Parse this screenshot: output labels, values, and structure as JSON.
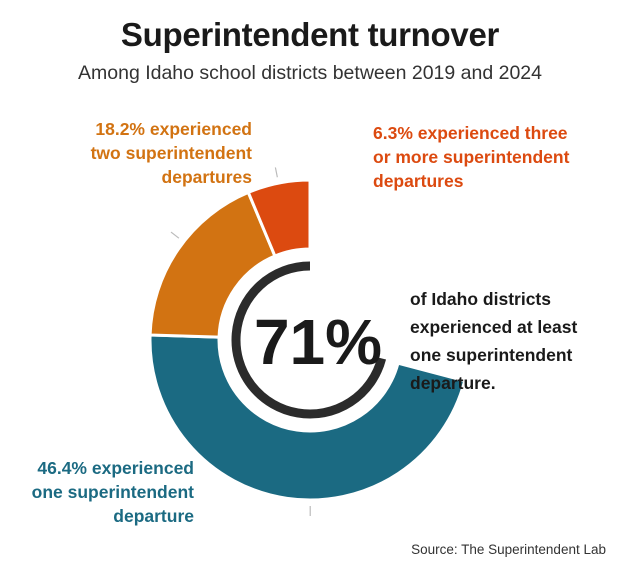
{
  "title": "Superintendent turnover",
  "subtitle": "Among Idaho school districts between 2019 and 2024",
  "source": "Source: The Superintendent Lab",
  "colors": {
    "one": "#1b6a82",
    "two": "#d27312",
    "three": "#dc4a10",
    "center_ring": "#2b2b2b"
  },
  "chart_data": {
    "type": "pie",
    "title": "Superintendent turnover",
    "subtitle": "Among Idaho school districts between 2019 and 2024",
    "categories": [
      "one superintendent departure",
      "two superintendent departures",
      "three or more superintendent departures"
    ],
    "values": [
      46.4,
      18.2,
      6.3
    ],
    "unit": "%",
    "total_label": "71%",
    "total_value": 71,
    "labels": {
      "one": [
        "46.4% experienced",
        "one superintendent",
        "departure"
      ],
      "two": [
        "18.2% experienced",
        "two superintendent",
        "departures"
      ],
      "three": [
        "6.3% experienced three",
        "or more superintendent",
        "departures"
      ]
    },
    "center_text": [
      "of Idaho districts",
      "experienced at least",
      "one superintendent",
      "departure."
    ]
  }
}
